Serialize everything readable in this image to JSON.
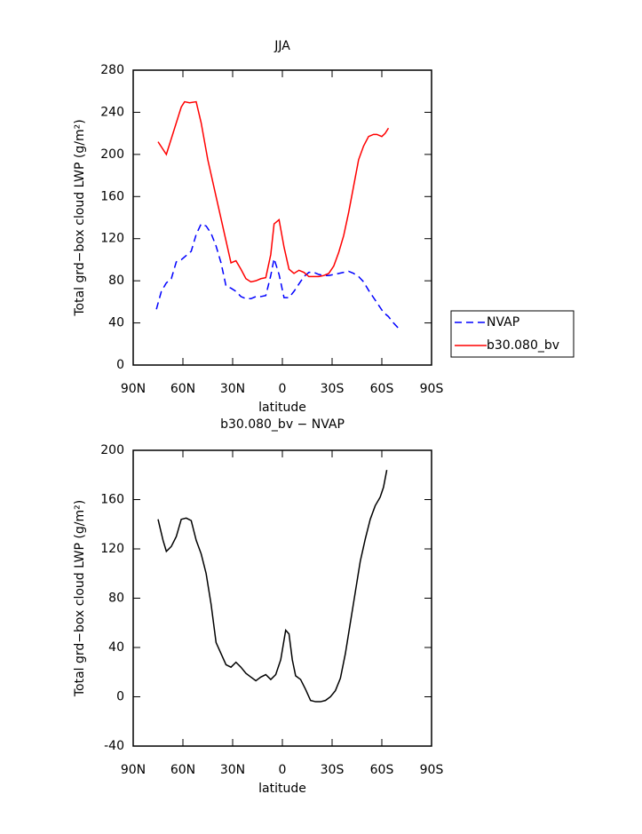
{
  "chart_data": [
    {
      "type": "line",
      "title": "JJA",
      "xlabel": "latitude",
      "ylabel": "Total grd−box cloud LWP (g/m²)",
      "xlim": [
        90,
        -90
      ],
      "xticks": [
        {
          "value": 90,
          "label": "90N"
        },
        {
          "value": 60,
          "label": "60N"
        },
        {
          "value": 30,
          "label": "30N"
        },
        0,
        {
          "value": -30,
          "label": "30S"
        },
        {
          "value": -60,
          "label": "60S"
        },
        {
          "value": -90,
          "label": "90S"
        }
      ],
      "ylim": [
        0,
        280
      ],
      "yticks": [
        0,
        40,
        80,
        120,
        160,
        200,
        240,
        280
      ],
      "legend": "right",
      "series": [
        {
          "name": "NVAP",
          "color": "#0000ff",
          "dash": "dashed",
          "x": [
            76,
            73,
            70,
            67,
            64,
            61,
            58,
            55,
            52,
            49,
            46,
            43,
            40,
            37,
            34,
            31,
            28,
            25,
            22,
            19,
            16,
            13,
            10,
            7,
            5,
            2,
            -1,
            -4,
            -7,
            -10,
            -13,
            -16,
            -19,
            -22,
            -25,
            -28,
            -31,
            -34,
            -37,
            -40,
            -43,
            -46,
            -49,
            -52,
            -55,
            -58,
            -61,
            -64,
            -67,
            -70
          ],
          "values": [
            53,
            70,
            78,
            82,
            98,
            100,
            104,
            108,
            124,
            134,
            132,
            125,
            113,
            97,
            75,
            73,
            70,
            65,
            63,
            63,
            65,
            65,
            66,
            85,
            101,
            86,
            64,
            64,
            70,
            77,
            84,
            88,
            88,
            86,
            85,
            85,
            86,
            87,
            88,
            89,
            87,
            84,
            79,
            71,
            64,
            57,
            50,
            46,
            40,
            35
          ]
        },
        {
          "name": "b30.080_bv",
          "color": "#ff0000",
          "dash": "solid",
          "x": [
            75,
            70,
            65,
            61,
            59,
            56,
            52,
            49,
            45,
            40,
            35,
            31,
            28,
            25,
            22,
            19,
            16,
            13,
            10,
            7,
            5,
            2,
            -1,
            -4,
            -7,
            -10,
            -13,
            -16,
            -19,
            -22,
            -25,
            -28,
            -31,
            -34,
            -37,
            -40,
            -43,
            -46,
            -49,
            -52,
            -55,
            -57,
            -60,
            -62,
            -64
          ],
          "values": [
            212,
            200,
            225,
            245,
            250,
            249,
            250,
            230,
            195,
            160,
            125,
            97,
            99,
            91,
            82,
            79,
            80,
            82,
            83,
            105,
            134,
            138,
            112,
            91,
            87,
            90,
            88,
            84,
            84,
            84,
            85,
            87,
            94,
            107,
            123,
            145,
            170,
            195,
            208,
            217,
            219,
            219,
            217,
            220,
            225
          ]
        }
      ]
    },
    {
      "type": "line",
      "title": "b30.080_bv − NVAP",
      "xlabel": "latitude",
      "ylabel": "Total grd−box cloud LWP (g/m²)",
      "xlim": [
        90,
        -90
      ],
      "xticks": [
        {
          "value": 90,
          "label": "90N"
        },
        {
          "value": 60,
          "label": "60N"
        },
        {
          "value": 30,
          "label": "30N"
        },
        0,
        {
          "value": -30,
          "label": "30S"
        },
        {
          "value": -60,
          "label": "60S"
        },
        {
          "value": -90,
          "label": "90S"
        }
      ],
      "ylim": [
        -40,
        200
      ],
      "yticks": [
        -40,
        0,
        40,
        80,
        120,
        160,
        200
      ],
      "series": [
        {
          "color": "#000000",
          "dash": "solid",
          "x": [
            75,
            72,
            70,
            67,
            64,
            61,
            58,
            55,
            52,
            49,
            46,
            43,
            40,
            37,
            34,
            31,
            28,
            25,
            22,
            19,
            16,
            13,
            10,
            7,
            4,
            1,
            -2,
            -4,
            -6,
            -8,
            -11,
            -14,
            -17,
            -20,
            -23,
            -26,
            -29,
            -32,
            -35,
            -38,
            -41,
            -44,
            -47,
            -50,
            -53,
            -56,
            -59,
            -61,
            -63
          ],
          "values": [
            144,
            127,
            118,
            122,
            130,
            144,
            145,
            143,
            127,
            116,
            100,
            75,
            44,
            35,
            26,
            24,
            28,
            24,
            19,
            16,
            13,
            16,
            18,
            14,
            18,
            30,
            54,
            51,
            30,
            17,
            14,
            6,
            -3,
            -4,
            -4,
            -3,
            0,
            5,
            15,
            35,
            60,
            85,
            110,
            128,
            144,
            155,
            162,
            170,
            184
          ]
        }
      ]
    }
  ]
}
